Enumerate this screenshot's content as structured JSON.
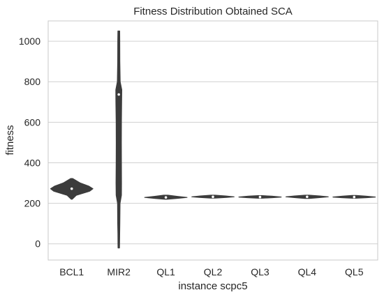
{
  "chart_data": {
    "type": "violin",
    "title": "Fitness Distribution Obtained SCA",
    "xlabel": "instance scpc5",
    "ylabel": "fitness",
    "categories": [
      "BCL1",
      "MIR2",
      "QL1",
      "QL2",
      "QL3",
      "QL4",
      "QL5"
    ],
    "ylim": [
      -80,
      1100
    ],
    "yticks": [
      0,
      200,
      400,
      600,
      800,
      1000
    ],
    "grid": true,
    "legend": "none",
    "colors": {
      "violin": "#3c3c3c",
      "median": "#ffffff",
      "grid": "#d0d0d0",
      "axis": "#c8c8c8"
    },
    "series": [
      {
        "category": "BCL1",
        "min": 220,
        "q1": 262,
        "median": 272,
        "q3": 282,
        "max": 322,
        "density": [
          [
            220,
            0.02
          ],
          [
            240,
            0.22
          ],
          [
            260,
            0.85
          ],
          [
            272,
            1.0
          ],
          [
            285,
            0.8
          ],
          [
            300,
            0.4
          ],
          [
            322,
            0.05
          ]
        ]
      },
      {
        "category": "MIR2",
        "min": -20,
        "q1": 235,
        "median": 737,
        "q3": 770,
        "max": 1050,
        "density": [
          [
            -20,
            0.2
          ],
          [
            0,
            0.22
          ],
          [
            50,
            0.25
          ],
          [
            100,
            0.3
          ],
          [
            200,
            0.35
          ],
          [
            240,
            0.75
          ],
          [
            300,
            0.78
          ],
          [
            400,
            0.75
          ],
          [
            500,
            0.73
          ],
          [
            600,
            0.75
          ],
          [
            700,
            0.82
          ],
          [
            760,
            0.85
          ],
          [
            800,
            0.4
          ],
          [
            900,
            0.3
          ],
          [
            1000,
            0.28
          ],
          [
            1050,
            0.25
          ]
        ]
      },
      {
        "category": "QL1",
        "min": 220,
        "q1": 226,
        "median": 229,
        "q3": 232,
        "max": 240,
        "density": [
          [
            220,
            0.05
          ],
          [
            224,
            0.5
          ],
          [
            229,
            1.0
          ],
          [
            234,
            0.55
          ],
          [
            240,
            0.1
          ]
        ]
      },
      {
        "category": "QL2",
        "min": 226,
        "q1": 230,
        "median": 232,
        "q3": 235,
        "max": 240,
        "density": [
          [
            226,
            0.1
          ],
          [
            229,
            0.65
          ],
          [
            232,
            1.0
          ],
          [
            236,
            0.6
          ],
          [
            240,
            0.1
          ]
        ]
      },
      {
        "category": "QL3",
        "min": 225,
        "q1": 229,
        "median": 231,
        "q3": 234,
        "max": 238,
        "density": [
          [
            225,
            0.1
          ],
          [
            228,
            0.6
          ],
          [
            231,
            1.0
          ],
          [
            235,
            0.55
          ],
          [
            238,
            0.1
          ]
        ]
      },
      {
        "category": "QL4",
        "min": 224,
        "q1": 229,
        "median": 232,
        "q3": 235,
        "max": 240,
        "density": [
          [
            224,
            0.1
          ],
          [
            228,
            0.55
          ],
          [
            232,
            1.0
          ],
          [
            236,
            0.6
          ],
          [
            240,
            0.1
          ]
        ]
      },
      {
        "category": "QL5",
        "min": 225,
        "q1": 229,
        "median": 231,
        "q3": 234,
        "max": 239,
        "density": [
          [
            225,
            0.1
          ],
          [
            228,
            0.6
          ],
          [
            231,
            1.0
          ],
          [
            235,
            0.55
          ],
          [
            239,
            0.1
          ]
        ]
      }
    ]
  }
}
